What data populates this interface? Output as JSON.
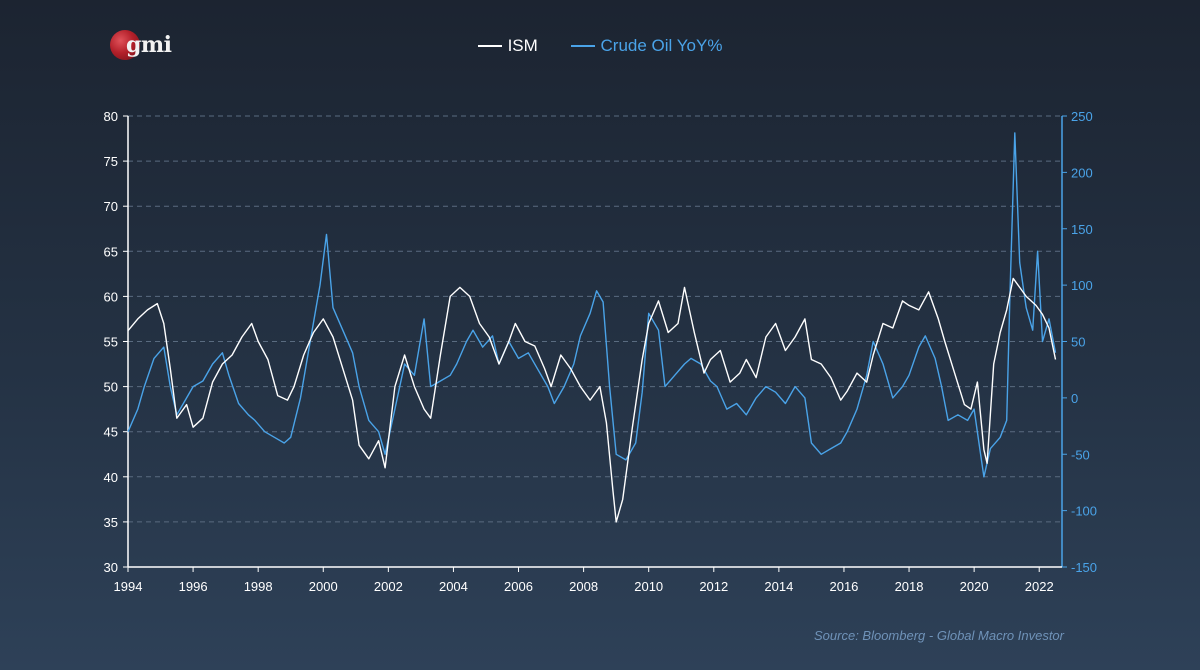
{
  "logo_text": "gmi",
  "source": "Source: Bloomberg - Global Macro Investor",
  "colors": {
    "ism": "#ffffff",
    "oil": "#4aa3e8",
    "axis_left": "#ffffff",
    "axis_right": "#4aa3e8",
    "grid": "#5a6b80"
  },
  "chart_data": {
    "type": "line",
    "title": "",
    "xlabel": "",
    "xlim": [
      1994,
      2022.7
    ],
    "x_ticks": [
      1994,
      1996,
      1998,
      2000,
      2002,
      2004,
      2006,
      2008,
      2010,
      2012,
      2014,
      2016,
      2018,
      2020,
      2022
    ],
    "y_left": {
      "label": "",
      "ylim": [
        30,
        80
      ],
      "ticks": [
        30,
        35,
        40,
        45,
        50,
        55,
        60,
        65,
        70,
        75,
        80
      ]
    },
    "y_right": {
      "label": "",
      "ylim": [
        -150,
        250
      ],
      "ticks": [
        -150,
        -100,
        -50,
        0,
        50,
        100,
        150,
        200,
        250
      ]
    },
    "grid": "horizontal dashed",
    "legend_position": "top-center",
    "series": [
      {
        "name": "ISM",
        "axis": "left",
        "points": [
          [
            1994.0,
            56.2
          ],
          [
            1994.3,
            57.5
          ],
          [
            1994.6,
            58.5
          ],
          [
            1994.9,
            59.2
          ],
          [
            1995.1,
            57.0
          ],
          [
            1995.3,
            52.0
          ],
          [
            1995.5,
            46.5
          ],
          [
            1995.8,
            48.0
          ],
          [
            1996.0,
            45.5
          ],
          [
            1996.3,
            46.5
          ],
          [
            1996.6,
            50.5
          ],
          [
            1996.9,
            52.5
          ],
          [
            1997.2,
            53.5
          ],
          [
            1997.5,
            55.5
          ],
          [
            1997.8,
            57.0
          ],
          [
            1998.0,
            55.0
          ],
          [
            1998.3,
            53.0
          ],
          [
            1998.6,
            49.0
          ],
          [
            1998.9,
            48.5
          ],
          [
            1999.1,
            50.0
          ],
          [
            1999.4,
            53.5
          ],
          [
            1999.7,
            56.0
          ],
          [
            2000.0,
            57.5
          ],
          [
            2000.3,
            55.5
          ],
          [
            2000.6,
            52.0
          ],
          [
            2000.9,
            48.5
          ],
          [
            2001.1,
            43.5
          ],
          [
            2001.4,
            42.0
          ],
          [
            2001.7,
            44.0
          ],
          [
            2001.9,
            41.0
          ],
          [
            2002.2,
            50.0
          ],
          [
            2002.5,
            53.5
          ],
          [
            2002.8,
            50.0
          ],
          [
            2003.1,
            47.5
          ],
          [
            2003.3,
            46.5
          ],
          [
            2003.6,
            53.5
          ],
          [
            2003.9,
            60.0
          ],
          [
            2004.2,
            61.0
          ],
          [
            2004.5,
            60.0
          ],
          [
            2004.8,
            57.0
          ],
          [
            2005.1,
            55.5
          ],
          [
            2005.4,
            52.5
          ],
          [
            2005.7,
            55.0
          ],
          [
            2005.9,
            57.0
          ],
          [
            2006.2,
            55.0
          ],
          [
            2006.5,
            54.5
          ],
          [
            2006.8,
            52.0
          ],
          [
            2007.0,
            50.0
          ],
          [
            2007.3,
            53.5
          ],
          [
            2007.6,
            52.0
          ],
          [
            2007.9,
            50.0
          ],
          [
            2008.2,
            48.5
          ],
          [
            2008.5,
            50.0
          ],
          [
            2008.7,
            46.0
          ],
          [
            2008.9,
            38.5
          ],
          [
            2009.0,
            35.0
          ],
          [
            2009.2,
            37.5
          ],
          [
            2009.5,
            45.5
          ],
          [
            2009.8,
            53.0
          ],
          [
            2010.0,
            57.0
          ],
          [
            2010.3,
            59.5
          ],
          [
            2010.6,
            56.0
          ],
          [
            2010.9,
            57.0
          ],
          [
            2011.1,
            61.0
          ],
          [
            2011.4,
            56.0
          ],
          [
            2011.7,
            51.5
          ],
          [
            2011.9,
            53.0
          ],
          [
            2012.2,
            54.0
          ],
          [
            2012.5,
            50.5
          ],
          [
            2012.8,
            51.5
          ],
          [
            2013.0,
            53.0
          ],
          [
            2013.3,
            51.0
          ],
          [
            2013.6,
            55.5
          ],
          [
            2013.9,
            57.0
          ],
          [
            2014.2,
            54.0
          ],
          [
            2014.5,
            55.5
          ],
          [
            2014.8,
            57.5
          ],
          [
            2015.0,
            53.0
          ],
          [
            2015.3,
            52.5
          ],
          [
            2015.6,
            51.0
          ],
          [
            2015.9,
            48.5
          ],
          [
            2016.1,
            49.5
          ],
          [
            2016.4,
            51.5
          ],
          [
            2016.7,
            50.5
          ],
          [
            2016.9,
            53.5
          ],
          [
            2017.2,
            57.0
          ],
          [
            2017.5,
            56.5
          ],
          [
            2017.8,
            59.5
          ],
          [
            2018.0,
            59.0
          ],
          [
            2018.3,
            58.5
          ],
          [
            2018.6,
            60.5
          ],
          [
            2018.9,
            57.5
          ],
          [
            2019.1,
            55.0
          ],
          [
            2019.4,
            51.5
          ],
          [
            2019.7,
            48.0
          ],
          [
            2019.9,
            47.5
          ],
          [
            2020.1,
            50.5
          ],
          [
            2020.3,
            43.0
          ],
          [
            2020.4,
            41.5
          ],
          [
            2020.6,
            52.5
          ],
          [
            2020.8,
            56.0
          ],
          [
            2021.0,
            58.5
          ],
          [
            2021.2,
            62.0
          ],
          [
            2021.4,
            61.0
          ],
          [
            2021.6,
            60.0
          ],
          [
            2021.9,
            59.0
          ],
          [
            2022.1,
            58.0
          ],
          [
            2022.3,
            56.5
          ],
          [
            2022.5,
            53.0
          ]
        ]
      },
      {
        "name": "Crude Oil YoY%",
        "axis": "right",
        "points": [
          [
            1994.0,
            -30
          ],
          [
            1994.3,
            -10
          ],
          [
            1994.5,
            10
          ],
          [
            1994.8,
            35
          ],
          [
            1995.1,
            45
          ],
          [
            1995.3,
            10
          ],
          [
            1995.5,
            -15
          ],
          [
            1995.8,
            0
          ],
          [
            1996.0,
            10
          ],
          [
            1996.3,
            15
          ],
          [
            1996.6,
            30
          ],
          [
            1996.9,
            40
          ],
          [
            1997.1,
            20
          ],
          [
            1997.4,
            -5
          ],
          [
            1997.7,
            -15
          ],
          [
            1997.9,
            -20
          ],
          [
            1998.2,
            -30
          ],
          [
            1998.5,
            -35
          ],
          [
            1998.8,
            -40
          ],
          [
            1999.0,
            -35
          ],
          [
            1999.3,
            0
          ],
          [
            1999.6,
            50
          ],
          [
            1999.9,
            100
          ],
          [
            2000.1,
            145
          ],
          [
            2000.3,
            80
          ],
          [
            2000.6,
            60
          ],
          [
            2000.9,
            40
          ],
          [
            2001.1,
            10
          ],
          [
            2001.4,
            -20
          ],
          [
            2001.7,
            -30
          ],
          [
            2001.9,
            -50
          ],
          [
            2002.2,
            -10
          ],
          [
            2002.5,
            30
          ],
          [
            2002.8,
            20
          ],
          [
            2003.1,
            70
          ],
          [
            2003.3,
            10
          ],
          [
            2003.6,
            15
          ],
          [
            2003.9,
            20
          ],
          [
            2004.1,
            30
          ],
          [
            2004.4,
            50
          ],
          [
            2004.6,
            60
          ],
          [
            2004.9,
            45
          ],
          [
            2005.2,
            55
          ],
          [
            2005.4,
            30
          ],
          [
            2005.7,
            50
          ],
          [
            2006.0,
            35
          ],
          [
            2006.3,
            40
          ],
          [
            2006.6,
            25
          ],
          [
            2006.9,
            10
          ],
          [
            2007.1,
            -5
          ],
          [
            2007.4,
            10
          ],
          [
            2007.7,
            30
          ],
          [
            2007.9,
            55
          ],
          [
            2008.2,
            75
          ],
          [
            2008.4,
            95
          ],
          [
            2008.6,
            85
          ],
          [
            2008.8,
            10
          ],
          [
            2009.0,
            -50
          ],
          [
            2009.3,
            -55
          ],
          [
            2009.6,
            -40
          ],
          [
            2009.8,
            5
          ],
          [
            2010.0,
            75
          ],
          [
            2010.3,
            60
          ],
          [
            2010.5,
            10
          ],
          [
            2010.8,
            20
          ],
          [
            2011.1,
            30
          ],
          [
            2011.3,
            35
          ],
          [
            2011.6,
            30
          ],
          [
            2011.9,
            15
          ],
          [
            2012.1,
            10
          ],
          [
            2012.4,
            -10
          ],
          [
            2012.7,
            -5
          ],
          [
            2013.0,
            -15
          ],
          [
            2013.3,
            0
          ],
          [
            2013.6,
            10
          ],
          [
            2013.9,
            5
          ],
          [
            2014.2,
            -5
          ],
          [
            2014.5,
            10
          ],
          [
            2014.8,
            0
          ],
          [
            2015.0,
            -40
          ],
          [
            2015.3,
            -50
          ],
          [
            2015.6,
            -45
          ],
          [
            2015.9,
            -40
          ],
          [
            2016.1,
            -30
          ],
          [
            2016.4,
            -10
          ],
          [
            2016.7,
            20
          ],
          [
            2016.9,
            50
          ],
          [
            2017.2,
            30
          ],
          [
            2017.5,
            0
          ],
          [
            2017.8,
            10
          ],
          [
            2018.0,
            20
          ],
          [
            2018.3,
            45
          ],
          [
            2018.5,
            55
          ],
          [
            2018.8,
            35
          ],
          [
            2019.0,
            10
          ],
          [
            2019.2,
            -20
          ],
          [
            2019.5,
            -15
          ],
          [
            2019.8,
            -20
          ],
          [
            2020.0,
            -10
          ],
          [
            2020.2,
            -50
          ],
          [
            2020.3,
            -70
          ],
          [
            2020.5,
            -45
          ],
          [
            2020.8,
            -35
          ],
          [
            2021.0,
            -20
          ],
          [
            2021.1,
            90
          ],
          [
            2021.25,
            235
          ],
          [
            2021.4,
            120
          ],
          [
            2021.6,
            80
          ],
          [
            2021.8,
            60
          ],
          [
            2021.95,
            130
          ],
          [
            2022.1,
            50
          ],
          [
            2022.3,
            70
          ],
          [
            2022.5,
            40
          ]
        ]
      }
    ]
  }
}
